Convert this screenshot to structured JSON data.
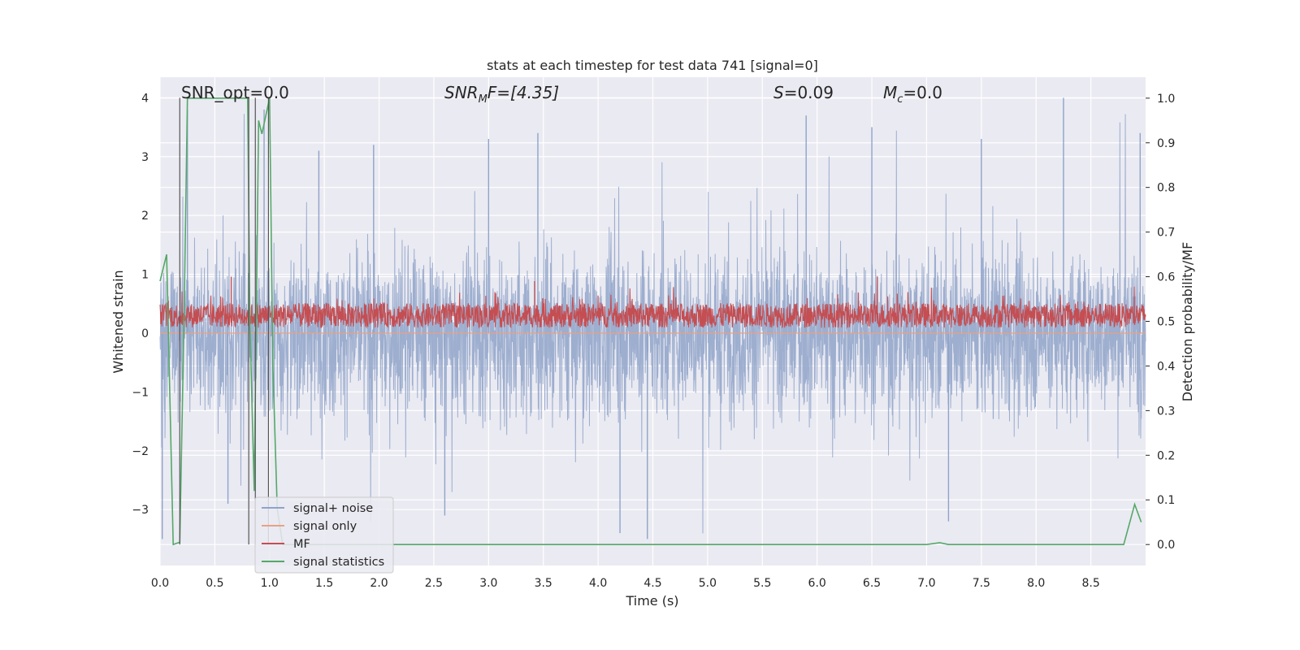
{
  "chart_data": {
    "type": "line",
    "title": "stats at each timestep for test data 741 [signal=0]",
    "xlabel": "Time (s)",
    "ylabel_left": "Whitened strain",
    "ylabel_right": "Detection probability/MF",
    "xlim": [
      0.0,
      9.0
    ],
    "ylim_left": [
      -3.95,
      4.35
    ],
    "ylim_right": [
      -0.047,
      1.047
    ],
    "x_ticks": [
      "0.0",
      "0.5",
      "1.0",
      "1.5",
      "2.0",
      "2.5",
      "3.0",
      "3.5",
      "4.0",
      "4.5",
      "5.0",
      "5.5",
      "6.0",
      "6.5",
      "7.0",
      "7.5",
      "8.0",
      "8.5"
    ],
    "y_ticks_left": [
      "4",
      "3",
      "2",
      "1",
      "0",
      "−1",
      "−2",
      "−3"
    ],
    "y_ticks_right": [
      "1.0",
      "0.9",
      "0.8",
      "0.7",
      "0.6",
      "0.5",
      "0.4",
      "0.3",
      "0.2",
      "0.1",
      "0.0"
    ],
    "grid": true,
    "legend_position": "lower-left",
    "annotations": {
      "snr_opt": "SNR_opt=0.0",
      "snr_mf_main": "SNR",
      "snr_mf_sub": "M",
      "snr_mf_rest": "F=[4.35]",
      "s_main": "S",
      "s_rest": "=0.09",
      "mc_main": "M",
      "mc_sub": "c",
      "mc_rest": "=0.0"
    },
    "series": [
      {
        "name": "signal+ noise",
        "color": "#8fa3c9",
        "axis": "left",
        "description_range": [
          -3.5,
          4.0
        ],
        "peak_points": [
          [
            0.02,
            -3.5
          ],
          [
            0.25,
            3.8
          ],
          [
            0.62,
            -2.9
          ],
          [
            0.95,
            3.8
          ],
          [
            1.45,
            3.1
          ],
          [
            1.95,
            3.2
          ],
          [
            2.6,
            -3.1
          ],
          [
            3.0,
            3.3
          ],
          [
            3.45,
            3.4
          ],
          [
            4.2,
            -3.4
          ],
          [
            4.45,
            -3.5
          ],
          [
            5.9,
            3.7
          ],
          [
            6.5,
            3.5
          ],
          [
            7.2,
            -3.2
          ],
          [
            7.5,
            3.3
          ],
          [
            8.25,
            4.0
          ],
          [
            8.95,
            3.4
          ]
        ]
      },
      {
        "name": "signal only",
        "color": "#e8a183",
        "axis": "left",
        "values_constant": 0.0
      },
      {
        "name": "MF",
        "color": "#c44e52",
        "axis": "right",
        "baseline": 0.505,
        "spread": [
          0.48,
          0.59
        ],
        "peak_points": [
          [
            0.65,
            0.6
          ],
          [
            3.42,
            0.59
          ],
          [
            6.55,
            0.6
          ]
        ]
      },
      {
        "name": "signal statistics",
        "color": "#55a868",
        "axis": "right",
        "x": [
          0.0,
          0.06,
          0.12,
          0.18,
          0.22,
          0.25,
          0.8,
          0.82,
          0.86,
          0.9,
          0.93,
          1.0,
          1.03,
          1.07,
          1.12,
          1.2,
          2.0,
          4.0,
          7.0,
          7.12,
          7.2,
          8.0,
          8.8,
          8.9,
          8.96
        ],
        "y": [
          0.59,
          0.65,
          0.0,
          0.005,
          0.52,
          1.0,
          1.0,
          0.5,
          0.12,
          0.95,
          0.92,
          1.0,
          0.4,
          0.08,
          0.0,
          0.0,
          0.0,
          0.0,
          0.0,
          0.004,
          0.0,
          0.0,
          0.0,
          0.09,
          0.05
        ]
      }
    ],
    "vertical_markers_x": [
      0.18,
      0.81,
      0.87,
      0.99
    ]
  }
}
